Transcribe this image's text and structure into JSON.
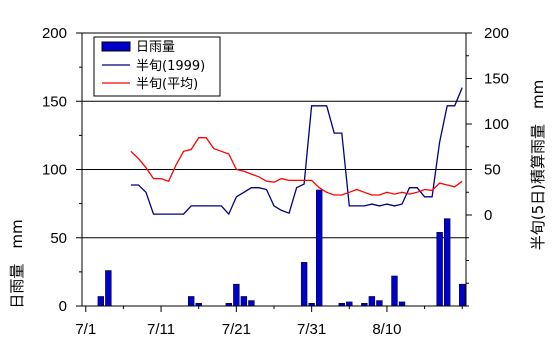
{
  "chart_data": {
    "type": "bar",
    "x": {
      "start_date": "7/1",
      "tick_labels": [
        "7/1",
        "7/11",
        "7/21",
        "7/31",
        "8/10"
      ],
      "tick_days": [
        1,
        11,
        21,
        31,
        41
      ],
      "range": [
        0.5,
        51.5
      ]
    },
    "left_axis": {
      "label": "日雨量　mm",
      "ticks": [
        0,
        50,
        100,
        150,
        200
      ],
      "range": [
        0,
        200
      ]
    },
    "right_axis": {
      "label": "半旬(5日)積算雨量　mm",
      "ticks": [
        0,
        50,
        100,
        150,
        200
      ],
      "range": [
        -100,
        200
      ]
    },
    "grid": "horizontal at 50, 100, 150 (left scale)",
    "legend": {
      "placement": "top-left"
    },
    "series": [
      {
        "name": "日雨量",
        "kind": "bar",
        "axis": "left",
        "color": "#0000cc",
        "days": [
          3,
          4,
          15,
          16,
          20,
          21,
          22,
          23,
          30,
          31,
          32,
          35,
          36,
          38,
          39,
          40,
          42,
          43,
          48,
          49,
          51
        ],
        "values": [
          7,
          26,
          7,
          2,
          2,
          16,
          7,
          4,
          32,
          2,
          85,
          2,
          3,
          2,
          7,
          4,
          22,
          3,
          54,
          64,
          16
        ]
      },
      {
        "name": "半旬(1999)",
        "kind": "line",
        "axis": "right",
        "color": "#000080",
        "days": [
          7,
          8,
          9,
          10,
          11,
          12,
          13,
          14,
          15,
          16,
          17,
          18,
          19,
          20,
          21,
          22,
          23,
          24,
          25,
          26,
          27,
          28,
          29,
          30,
          31,
          32,
          33,
          34,
          35,
          36,
          37,
          38,
          39,
          40,
          41,
          42,
          43,
          44,
          45,
          46,
          47,
          48,
          49,
          50,
          51
        ],
        "values": [
          33,
          33,
          25,
          1,
          1,
          1,
          1,
          1,
          10,
          10,
          10,
          10,
          10,
          1,
          20,
          25,
          30,
          30,
          28,
          10,
          5,
          2,
          30,
          34,
          120,
          120,
          120,
          90,
          90,
          10,
          10,
          10,
          12,
          10,
          12,
          10,
          12,
          30,
          30,
          20,
          20,
          80,
          120,
          120,
          140
        ]
      },
      {
        "name": "半旬(平均)",
        "kind": "line",
        "axis": "right",
        "color": "#ff0000",
        "days": [
          7,
          8,
          9,
          10,
          11,
          12,
          13,
          14,
          15,
          16,
          17,
          18,
          19,
          20,
          21,
          22,
          23,
          24,
          25,
          26,
          27,
          28,
          29,
          30,
          31,
          32,
          33,
          34,
          35,
          36,
          37,
          38,
          39,
          40,
          41,
          42,
          43,
          44,
          45,
          46,
          47,
          48,
          49,
          50,
          51
        ],
        "values": [
          70,
          62,
          52,
          40,
          40,
          37,
          55,
          70,
          72,
          85,
          85,
          73,
          70,
          67,
          50,
          48,
          45,
          42,
          37,
          36,
          40,
          38,
          38,
          38,
          38,
          30,
          25,
          22,
          22,
          25,
          28,
          25,
          22,
          22,
          25,
          23,
          25,
          23,
          25,
          28,
          27,
          35,
          33,
          31,
          37
        ]
      }
    ]
  }
}
